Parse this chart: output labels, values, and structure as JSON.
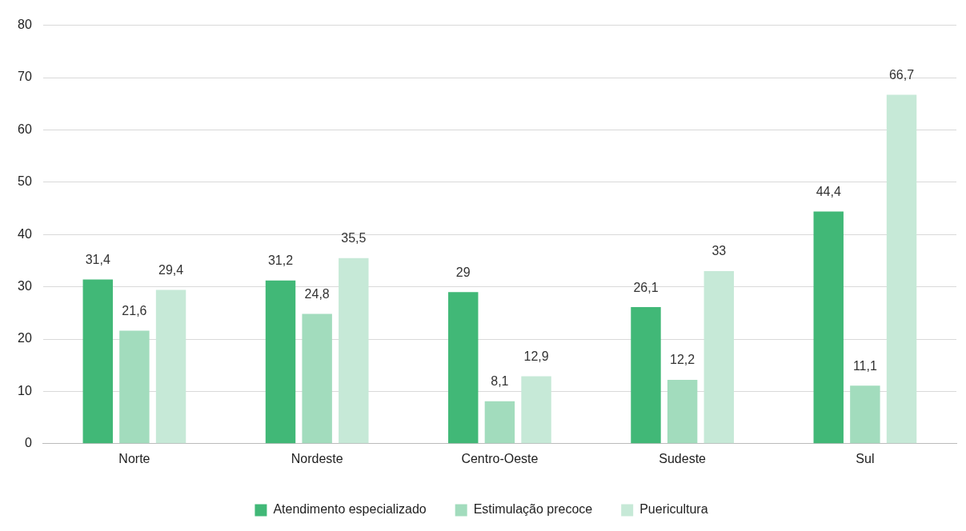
{
  "chart_data": {
    "type": "bar",
    "categories": [
      "Norte",
      "Nordeste",
      "Centro-Oeste",
      "Sudeste",
      "Sul"
    ],
    "series": [
      {
        "name": "Atendimento especializado",
        "color": "#41b877",
        "values": [
          31.4,
          31.2,
          29,
          26.1,
          44.4
        ],
        "value_labels": [
          "31,4",
          "31,2",
          "29",
          "26,1",
          "44,4"
        ]
      },
      {
        "name": "Estimulação precoce",
        "color": "#a2dcbd",
        "values": [
          21.6,
          24.8,
          8.1,
          12.2,
          11.1
        ],
        "value_labels": [
          "21,6",
          "24,8",
          "8,1",
          "12,2",
          "11,1"
        ]
      },
      {
        "name": "Puericultura",
        "color": "#c6e9d7",
        "values": [
          29.4,
          35.5,
          12.9,
          33,
          66.7
        ],
        "value_labels": [
          "29,4",
          "35,5",
          "12,9",
          "33",
          "66,7"
        ]
      }
    ],
    "ylim": [
      0,
      80
    ],
    "yticks": [
      0,
      10,
      20,
      30,
      40,
      50,
      60,
      70,
      80
    ],
    "grid": "y",
    "legend": "bottom"
  }
}
